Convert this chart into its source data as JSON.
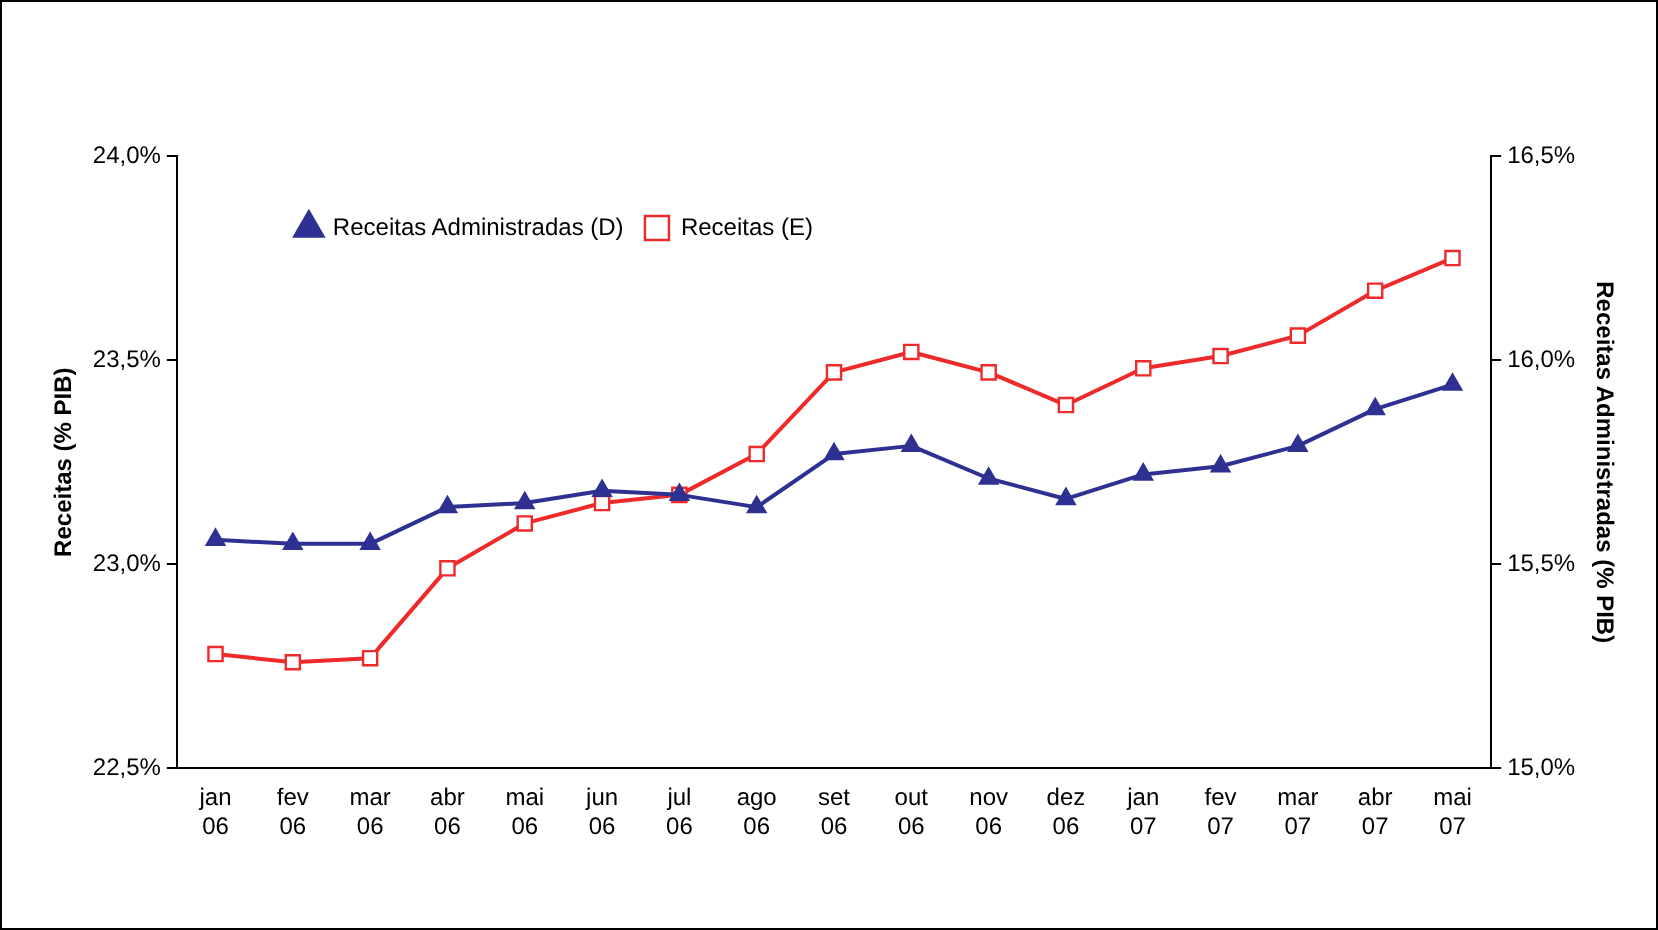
{
  "chart_data": {
    "type": "line",
    "ylabel": "Receitas (% PIB)",
    "y2label": "Receitas Administradas (% PIB)",
    "categories": [
      "jan\n06",
      "fev\n06",
      "mar\n06",
      "abr\n06",
      "mai\n06",
      "jun\n06",
      "jul\n06",
      "ago\n06",
      "set\n06",
      "out\n06",
      "nov\n06",
      "dez\n06",
      "jan\n07",
      "fev\n07",
      "mar\n07",
      "abr\n07",
      "mai\n07"
    ],
    "series": [
      {
        "name": "Receitas (E)",
        "color": "#ee2a2a",
        "marker": "square",
        "values": [
          22.78,
          22.76,
          22.77,
          22.99,
          23.1,
          23.15,
          23.17,
          23.27,
          23.47,
          23.52,
          23.47,
          23.39,
          23.48,
          23.51,
          23.56,
          23.67,
          23.75
        ]
      },
      {
        "name": "Receitas Administradas (D)",
        "color": "#2e3192",
        "marker": "triangle",
        "axis": "y2",
        "values": [
          15.56,
          15.55,
          15.55,
          15.64,
          15.65,
          15.68,
          15.67,
          15.64,
          15.77,
          15.79,
          15.71,
          15.66,
          15.72,
          15.74,
          15.79,
          15.88,
          15.94
        ]
      }
    ],
    "ylim": [
      22.5,
      24.0
    ],
    "yticks": [
      {
        "value": 22.5,
        "label": "22,5%"
      },
      {
        "value": 23.0,
        "label": "23,0%"
      },
      {
        "value": 23.5,
        "label": "23,5%"
      },
      {
        "value": 24.0,
        "label": "24,0%"
      }
    ],
    "y2lim": [
      15.0,
      16.5
    ],
    "y2ticks": [
      {
        "value": 15.0,
        "label": "15,0%"
      },
      {
        "value": 15.5,
        "label": "15,5%"
      },
      {
        "value": 16.0,
        "label": "16,0%"
      },
      {
        "value": 16.5,
        "label": "16,5%"
      }
    ],
    "grid": false,
    "legend": "top left",
    "line_style": "solid"
  }
}
